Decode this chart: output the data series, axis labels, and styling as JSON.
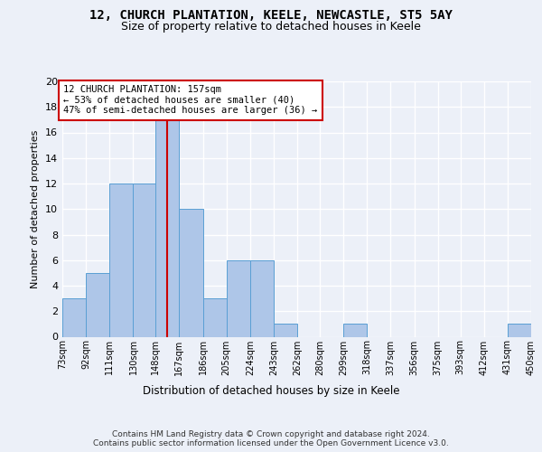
{
  "title": "12, CHURCH PLANTATION, KEELE, NEWCASTLE, ST5 5AY",
  "subtitle": "Size of property relative to detached houses in Keele",
  "xlabel": "Distribution of detached houses by size in Keele",
  "ylabel": "Number of detached properties",
  "bar_color": "#aec6e8",
  "bar_edge_color": "#5a9fd4",
  "bins": [
    73,
    92,
    111,
    130,
    148,
    167,
    186,
    205,
    224,
    243,
    262,
    280,
    299,
    318,
    337,
    356,
    375,
    393,
    412,
    431,
    450
  ],
  "bin_labels": [
    "73sqm",
    "92sqm",
    "111sqm",
    "130sqm",
    "148sqm",
    "167sqm",
    "186sqm",
    "205sqm",
    "224sqm",
    "243sqm",
    "262sqm",
    "280sqm",
    "299sqm",
    "318sqm",
    "337sqm",
    "356sqm",
    "375sqm",
    "393sqm",
    "412sqm",
    "431sqm",
    "450sqm"
  ],
  "counts": [
    3,
    5,
    12,
    12,
    17,
    10,
    3,
    6,
    6,
    1,
    0,
    0,
    1,
    0,
    0,
    0,
    0,
    0,
    0,
    1
  ],
  "property_size": 157,
  "property_line_color": "#cc0000",
  "annotation_text": "12 CHURCH PLANTATION: 157sqm\n← 53% of detached houses are smaller (40)\n47% of semi-detached houses are larger (36) →",
  "annotation_box_color": "#ffffff",
  "annotation_box_edge_color": "#cc0000",
  "ylim": [
    0,
    20
  ],
  "yticks": [
    0,
    2,
    4,
    6,
    8,
    10,
    12,
    14,
    16,
    18,
    20
  ],
  "footer": "Contains HM Land Registry data © Crown copyright and database right 2024.\nContains public sector information licensed under the Open Government Licence v3.0.",
  "background_color": "#ecf0f8",
  "grid_color": "#ffffff"
}
